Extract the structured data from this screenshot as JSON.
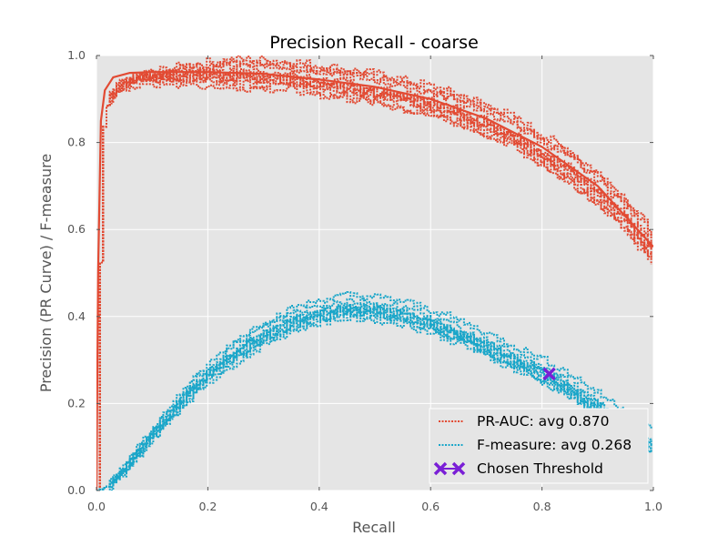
{
  "chart_data": {
    "type": "line",
    "title": "Precision Recall - coarse",
    "xlabel": "Recall",
    "ylabel": "Precision (PR Curve) / F-measure",
    "xlim": [
      0.0,
      1.0
    ],
    "ylim": [
      0.0,
      1.0
    ],
    "xticks": [
      "0.0",
      "0.2",
      "0.4",
      "0.6",
      "0.8",
      "1.0"
    ],
    "yticks": [
      "0.0",
      "0.2",
      "0.4",
      "0.6",
      "0.8",
      "1.0"
    ],
    "grid": true,
    "legend_position": "lower-right",
    "legend": [
      {
        "label": "PR-AUC: avg 0.870",
        "color": "#e24a33",
        "style": "dotted"
      },
      {
        "label": "F-measure: avg 0.268",
        "color": "#1aa6c9",
        "style": "dotted"
      },
      {
        "label": "Chosen Threshold",
        "color": "#7a1fd6",
        "style": "marker-x"
      }
    ],
    "pr_curve_points": [
      [
        0.0,
        0.0
      ],
      [
        0.005,
        0.45
      ],
      [
        0.01,
        0.82
      ],
      [
        0.02,
        0.9
      ],
      [
        0.04,
        0.93
      ],
      [
        0.07,
        0.95
      ],
      [
        0.1,
        0.955
      ],
      [
        0.15,
        0.96
      ],
      [
        0.2,
        0.962
      ],
      [
        0.25,
        0.962
      ],
      [
        0.3,
        0.96
      ],
      [
        0.35,
        0.955
      ],
      [
        0.4,
        0.945
      ],
      [
        0.45,
        0.935
      ],
      [
        0.5,
        0.925
      ],
      [
        0.55,
        0.91
      ],
      [
        0.6,
        0.895
      ],
      [
        0.65,
        0.875
      ],
      [
        0.7,
        0.85
      ],
      [
        0.75,
        0.82
      ],
      [
        0.8,
        0.78
      ],
      [
        0.85,
        0.74
      ],
      [
        0.9,
        0.69
      ],
      [
        0.95,
        0.63
      ],
      [
        1.0,
        0.55
      ]
    ],
    "pr_curve_avg_points": [
      [
        0.0,
        0.0
      ],
      [
        0.003,
        0.5
      ],
      [
        0.008,
        0.85
      ],
      [
        0.015,
        0.92
      ],
      [
        0.03,
        0.95
      ],
      [
        0.06,
        0.96
      ],
      [
        0.1,
        0.962
      ],
      [
        0.2,
        0.962
      ],
      [
        0.3,
        0.958
      ],
      [
        0.4,
        0.945
      ],
      [
        0.5,
        0.928
      ],
      [
        0.6,
        0.9
      ],
      [
        0.7,
        0.855
      ],
      [
        0.8,
        0.79
      ],
      [
        0.9,
        0.7
      ],
      [
        1.0,
        0.56
      ]
    ],
    "fmeasure_points": [
      [
        0.0,
        0.0
      ],
      [
        0.02,
        0.01
      ],
      [
        0.05,
        0.05
      ],
      [
        0.08,
        0.1
      ],
      [
        0.12,
        0.16
      ],
      [
        0.16,
        0.22
      ],
      [
        0.2,
        0.27
      ],
      [
        0.25,
        0.32
      ],
      [
        0.3,
        0.36
      ],
      [
        0.35,
        0.39
      ],
      [
        0.4,
        0.41
      ],
      [
        0.45,
        0.42
      ],
      [
        0.5,
        0.415
      ],
      [
        0.55,
        0.405
      ],
      [
        0.6,
        0.385
      ],
      [
        0.65,
        0.36
      ],
      [
        0.7,
        0.33
      ],
      [
        0.75,
        0.3
      ],
      [
        0.8,
        0.27
      ],
      [
        0.85,
        0.235
      ],
      [
        0.9,
        0.19
      ],
      [
        0.95,
        0.15
      ],
      [
        0.98,
        0.12
      ],
      [
        1.0,
        0.1
      ]
    ],
    "chosen_threshold": {
      "x": 0.813,
      "y": 0.268
    }
  }
}
